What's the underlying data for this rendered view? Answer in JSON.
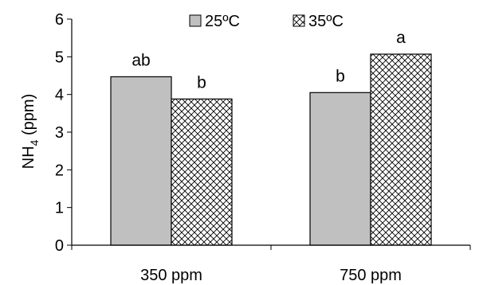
{
  "chart_data": {
    "type": "bar",
    "categories": [
      "350 ppm",
      "750 ppm"
    ],
    "series": [
      {
        "name": "25ºC",
        "values": [
          4.47,
          4.05
        ],
        "labels": [
          "ab",
          "b"
        ],
        "fill": "#c0c0c0",
        "pattern": "solid"
      },
      {
        "name": "35ºC",
        "values": [
          3.88,
          5.07
        ],
        "labels": [
          "b",
          "a"
        ],
        "fill": "#ffffff",
        "pattern": "crosshatch"
      }
    ],
    "ylabel_main": "NH",
    "ylabel_sub": "4",
    "ylabel_unit": " (ppm)",
    "ylim": [
      0,
      6
    ],
    "yticks": [
      "0",
      "1",
      "2",
      "3",
      "4",
      "5",
      "6"
    ],
    "legend_position": "top-center",
    "grid": false
  }
}
